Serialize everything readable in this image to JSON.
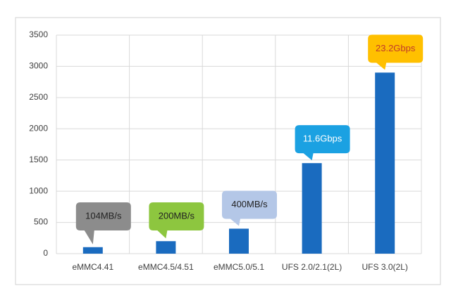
{
  "chart_data": {
    "type": "bar",
    "categories": [
      "eMMC4.41",
      "eMMC4.5/4.51",
      "eMMC5.0/5.1",
      "UFS 2.0/2.1(2L)",
      "UFS 3.0(2L)"
    ],
    "values": [
      104,
      200,
      400,
      1450,
      2900
    ],
    "value_labels": [
      "104MB/s",
      "200MB/s",
      "400MB/s",
      "11.6Gbps",
      "23.2Gbps"
    ],
    "label_colors": [
      "#8c8c8c",
      "#8dc63f",
      "#b4c7e7",
      "#1ba1e2",
      "#ffc000"
    ],
    "color": "#1a6bbf",
    "ylim": [
      0,
      3500
    ],
    "yticks": [
      0,
      500,
      1000,
      1500,
      2000,
      2500,
      3000,
      3500
    ],
    "grid": true
  }
}
